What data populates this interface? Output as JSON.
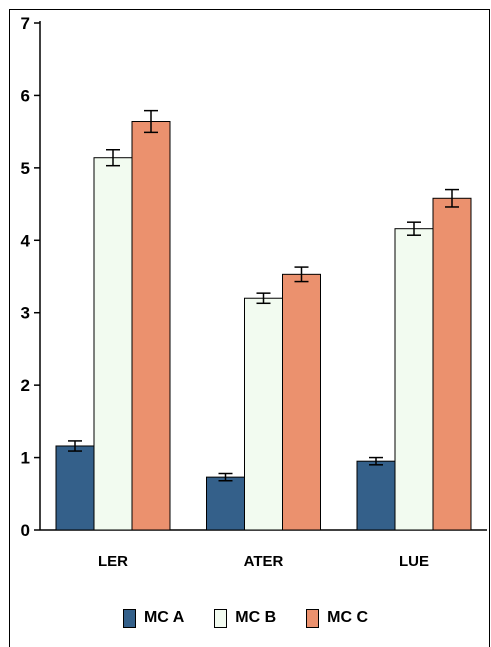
{
  "chart_data": {
    "type": "bar",
    "categories": [
      "LER",
      "ATER",
      "LUE"
    ],
    "series": [
      {
        "name": "MC A",
        "values": [
          1.16,
          0.73,
          0.95
        ],
        "errors": [
          0.07,
          0.05,
          0.05
        ],
        "color": "#34608a"
      },
      {
        "name": "MC B",
        "values": [
          5.14,
          3.2,
          4.16
        ],
        "errors": [
          0.11,
          0.07,
          0.09
        ],
        "color": "#f2fbf0"
      },
      {
        "name": "MC C",
        "values": [
          5.64,
          3.53,
          4.58
        ],
        "errors": [
          0.15,
          0.1,
          0.12
        ],
        "color": "#eb916e"
      }
    ],
    "ylim": [
      0,
      7
    ],
    "yticks": [
      "0",
      "1",
      "2",
      "3",
      "4",
      "5",
      "6",
      "7"
    ],
    "legend_position": "bottom",
    "grid": false,
    "title": "",
    "xlabel": "",
    "ylabel": ""
  }
}
